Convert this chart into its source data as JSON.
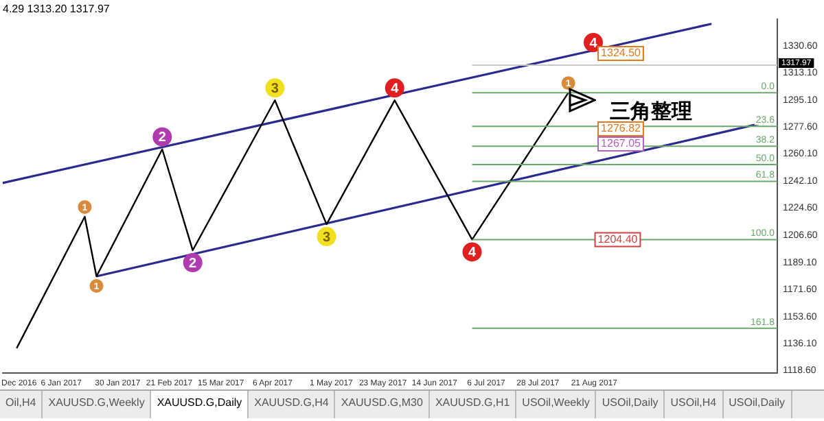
{
  "chart_data": {
    "type": "line",
    "series": [
      {
        "color": "#000000",
        "x": [
          "2016-12-18",
          "2017-01-16",
          "2017-01-21",
          "2017-02-18",
          "2017-03-03",
          "2017-04-07",
          "2017-04-29",
          "2017-05-28",
          "2017-06-30",
          "2017-08-10"
        ],
        "values": [
          1133,
          1219,
          1180,
          1263,
          1197,
          1295,
          1214,
          1295,
          1204,
          1300
        ]
      },
      {
        "color": "#2b2b8f",
        "x": [
          "2016-12-12",
          "2017-10-10"
        ],
        "values": [
          1241,
          1345
        ]
      },
      {
        "color": "#2b2b8f",
        "x": [
          "2017-01-21",
          "2017-11-06"
        ],
        "values": [
          1180,
          1282
        ]
      }
    ],
    "xlim": [
      "2016-12-12",
      "2017-11-07"
    ],
    "xticks": [
      {
        "value": "2016-12-19",
        "label": "Dec 2016"
      },
      {
        "value": "2017-01-06",
        "label": "6 Jan 2017"
      },
      {
        "value": "2017-01-30",
        "label": "30 Jan 2017"
      },
      {
        "value": "2017-02-21",
        "label": "21 Feb 2017"
      },
      {
        "value": "2017-03-15",
        "label": "15 Mar 2017"
      },
      {
        "value": "2017-04-06",
        "label": "6 Apr 2017"
      },
      {
        "value": "2017-05-01",
        "label": "1 May 2017"
      },
      {
        "value": "2017-05-23",
        "label": "23 May 2017"
      },
      {
        "value": "2017-06-14",
        "label": "14 Jun 2017"
      },
      {
        "value": "2017-07-06",
        "label": "6 Jul 2017"
      },
      {
        "value": "2017-07-28",
        "label": "28 Jul 2017"
      },
      {
        "value": "2017-08-21",
        "label": "21 Aug 2017"
      }
    ],
    "ylim": [
      1117,
      1348
    ],
    "yticks": [
      {
        "value": 1118.6,
        "label": "1118.60"
      },
      {
        "value": 1136.1,
        "label": "1136.10"
      },
      {
        "value": 1153.6,
        "label": "1153.60"
      },
      {
        "value": 1171.6,
        "label": "1171.60"
      },
      {
        "value": 1189.1,
        "label": "1189.10"
      },
      {
        "value": 1206.6,
        "label": "1206.60"
      },
      {
        "value": 1224.6,
        "label": "1224.60"
      },
      {
        "value": 1242.1,
        "label": "1242.10"
      },
      {
        "value": 1260.1,
        "label": "1260.10"
      },
      {
        "value": 1277.6,
        "label": "1277.60"
      },
      {
        "value": 1295.1,
        "label": "1295.10"
      },
      {
        "value": 1313.1,
        "label": "1313.10"
      },
      {
        "value": 1330.6,
        "label": "1330.60"
      }
    ],
    "ref_lines": [
      {
        "axis": "y",
        "value": 1300,
        "color": "#6aa86a"
      },
      {
        "axis": "y",
        "value": 1278,
        "color": "#6aa86a"
      },
      {
        "axis": "y",
        "value": 1265,
        "color": "#6aa86a"
      },
      {
        "axis": "y",
        "value": 1253,
        "color": "#6aa86a"
      },
      {
        "axis": "y",
        "value": 1242,
        "color": "#6aa86a"
      },
      {
        "axis": "y",
        "value": 1204,
        "color": "#6aa86a"
      },
      {
        "axis": "y",
        "value": 1146,
        "color": "#6aa86a"
      },
      {
        "axis": "y",
        "value": 1317.97,
        "label": "1317.97",
        "color": "#c8c8c8"
      }
    ],
    "annotations": [
      {
        "text": "2",
        "x": "2017-02-18",
        "y": 1263
      },
      {
        "text": "2",
        "x": "2017-03-03",
        "y": 1197
      },
      {
        "text": "3",
        "x": "2017-04-07",
        "y": 1295
      },
      {
        "text": "3",
        "x": "2017-04-29",
        "y": 1214
      },
      {
        "text": "4",
        "x": "2017-05-28",
        "y": 1295
      },
      {
        "text": "4",
        "x": "2017-06-30",
        "y": 1204
      },
      {
        "text": "1",
        "x": "2017-01-16",
        "y": 1219
      },
      {
        "text": "1",
        "x": "2017-01-21",
        "y": 1180
      },
      {
        "text": "1",
        "x": "2017-08-10",
        "y": 1300
      },
      {
        "text": "0.0",
        "x": "2017-11-07",
        "y": 1300
      },
      {
        "text": "23.6",
        "x": "2017-11-07",
        "y": 1278
      },
      {
        "text": "38.2",
        "x": "2017-11-07",
        "y": 1265
      },
      {
        "text": "50.0",
        "x": "2017-11-07",
        "y": 1253
      },
      {
        "text": "61.8",
        "x": "2017-11-07",
        "y": 1242
      },
      {
        "text": "100.0",
        "x": "2017-11-07",
        "y": 1204
      },
      {
        "text": "161.8",
        "x": "2017-11-07",
        "y": 1146
      },
      {
        "text": "1204.40",
        "x": "2017-08-31",
        "y": 1204
      },
      "4",
      "1324.50",
      "1276.82",
      "1267.05",
      "4.29 1313.20 1317.97",
      "三角整理",
      "Oil,H4",
      "XAUUSD.G,Weekly",
      "XAUUSD.G,Daily",
      "XAUUSD.G,H4",
      "XAUUSD.G,M30",
      "XAUUSD.G,H1",
      "USOil,Weekly",
      "USOil,Daily",
      "USOil,H4",
      "USOil,Daily"
    ],
    "grid": false,
    "legend": false,
    "marker": "none"
  }
}
